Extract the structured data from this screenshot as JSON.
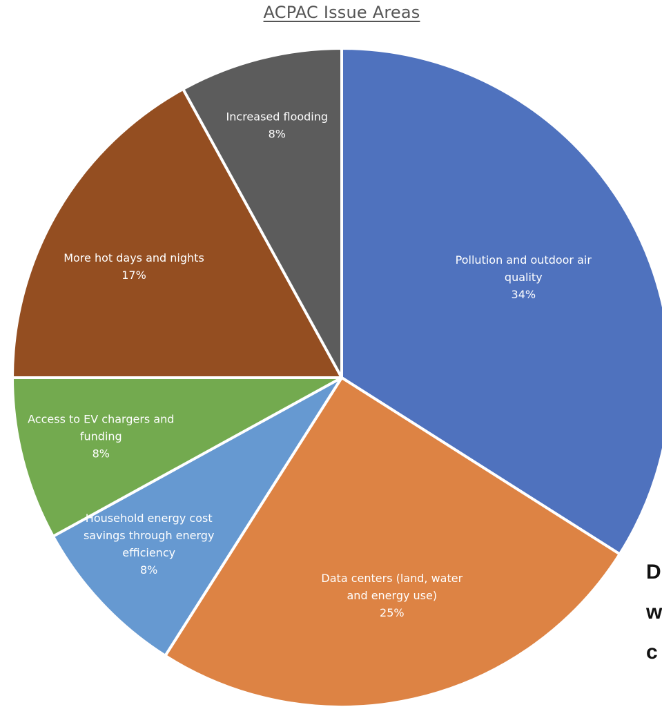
{
  "title": "ACPAC Issue Areas",
  "side_text": [
    "D",
    "w",
    "c"
  ],
  "chart_data": {
    "type": "pie",
    "title": "ACPAC Issue Areas",
    "start_angle_deg": 0,
    "direction": "clockwise",
    "slices": [
      {
        "label": "Pollution and outdoor air quality",
        "label_lines": [
          "Pollution and outdoor air",
          "quality"
        ],
        "pct": "34%",
        "value": 34,
        "color": "#4F72BE"
      },
      {
        "label": "Data centers (land, water and energy use)",
        "label_lines": [
          "Data centers (land, water",
          "and energy use)"
        ],
        "pct": "25%",
        "value": 25,
        "color": "#DD8344"
      },
      {
        "label": "Household energy cost savings through energy efficiency",
        "label_lines": [
          "Household energy cost",
          "savings through energy",
          "efficiency"
        ],
        "pct": "8%",
        "value": 8,
        "color": "#6699D1"
      },
      {
        "label": "Access to EV chargers and funding",
        "label_lines": [
          "Access to EV chargers and",
          "funding"
        ],
        "pct": "8%",
        "value": 8,
        "color": "#73AA4F"
      },
      {
        "label": "More hot days and nights",
        "label_lines": [
          "More hot days and nights"
        ],
        "pct": "17%",
        "value": 17,
        "color": "#944E21"
      },
      {
        "label": "Increased flooding",
        "label_lines": [
          "Increased flooding"
        ],
        "pct": "8%",
        "value": 8,
        "color": "#5C5C5C"
      }
    ]
  }
}
